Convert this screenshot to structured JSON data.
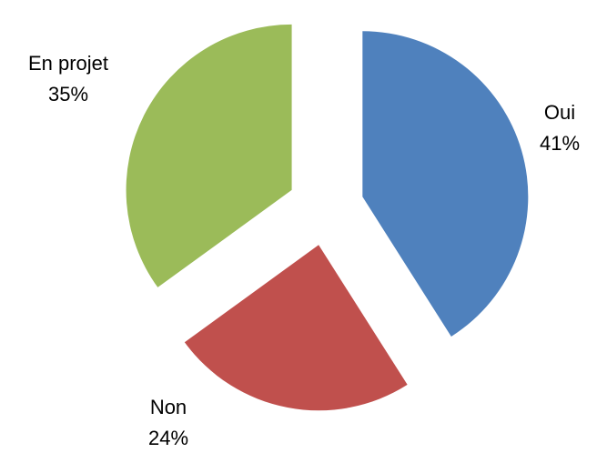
{
  "chart_data": {
    "type": "pie",
    "categories": [
      "Oui",
      "Non",
      "En projet"
    ],
    "values": [
      41,
      24,
      35
    ],
    "value_labels": [
      "41%",
      "24%",
      "35%"
    ],
    "colors": [
      "#4f81bd",
      "#c0504d",
      "#9bbb59"
    ]
  }
}
